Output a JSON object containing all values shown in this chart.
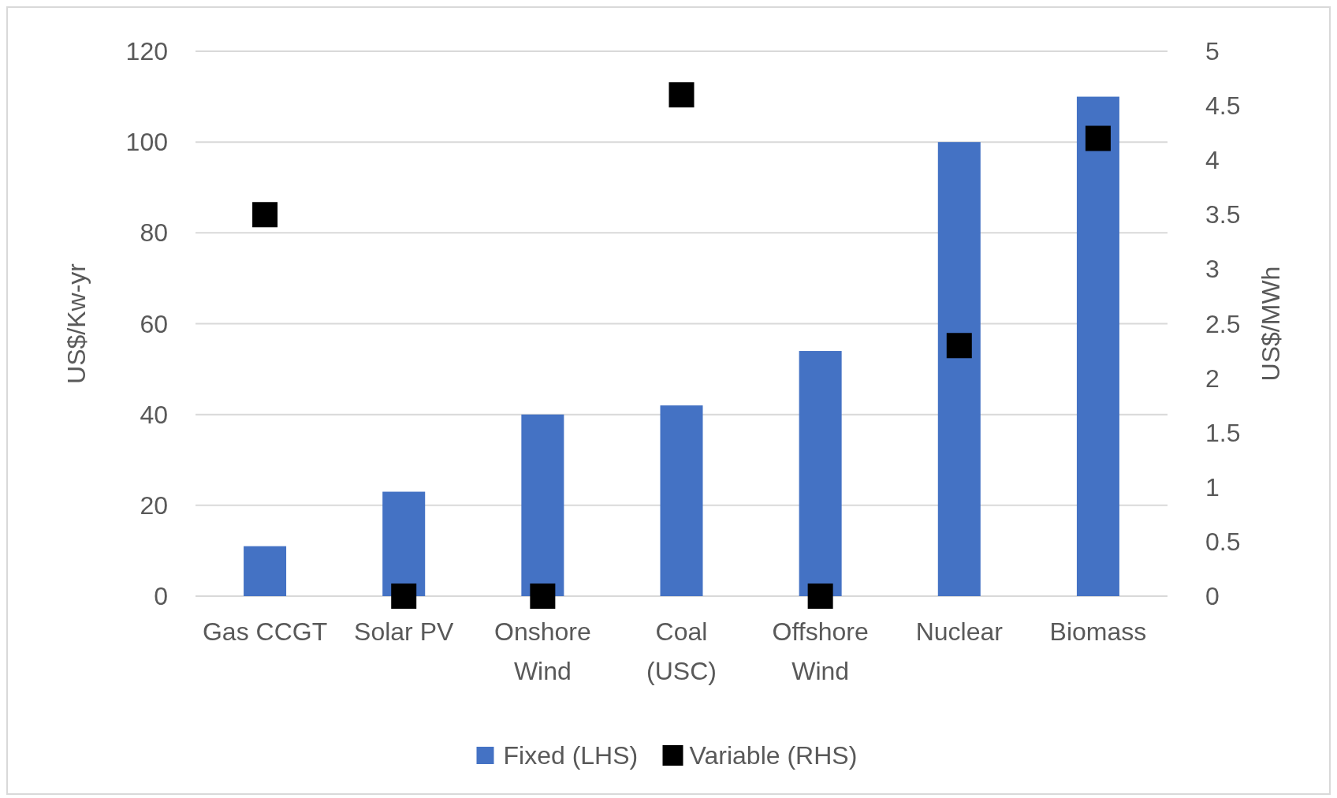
{
  "chart_data": {
    "type": "bar",
    "ylabel": "US$/Kw-yr",
    "y2label": "US$/MWh",
    "categories": [
      "Gas CCGT",
      "Solar PV",
      "Onshore Wind",
      "Coal (USC)",
      "Offshore Wind",
      "Nuclear",
      "Biomass"
    ],
    "series": [
      {
        "name": "Fixed (LHS)",
        "color": "#4472c4",
        "values": [
          11,
          23,
          40,
          42,
          54,
          100,
          110
        ]
      },
      {
        "name": "Variable (RHS)",
        "type": "scatter",
        "axis": "y2",
        "marker": "square",
        "color": "#000000",
        "values": [
          3.5,
          0,
          0,
          4.6,
          0,
          2.3,
          4.2
        ]
      }
    ],
    "ylim": [
      0,
      120
    ],
    "yticks": [
      0,
      20,
      40,
      60,
      80,
      100,
      120
    ],
    "y2lim": [
      0,
      5
    ],
    "y2ticks": [
      0,
      0.5,
      1,
      1.5,
      2,
      2.5,
      3,
      3.5,
      4,
      4.5,
      5
    ],
    "grid": "y",
    "legend": "bottom"
  }
}
